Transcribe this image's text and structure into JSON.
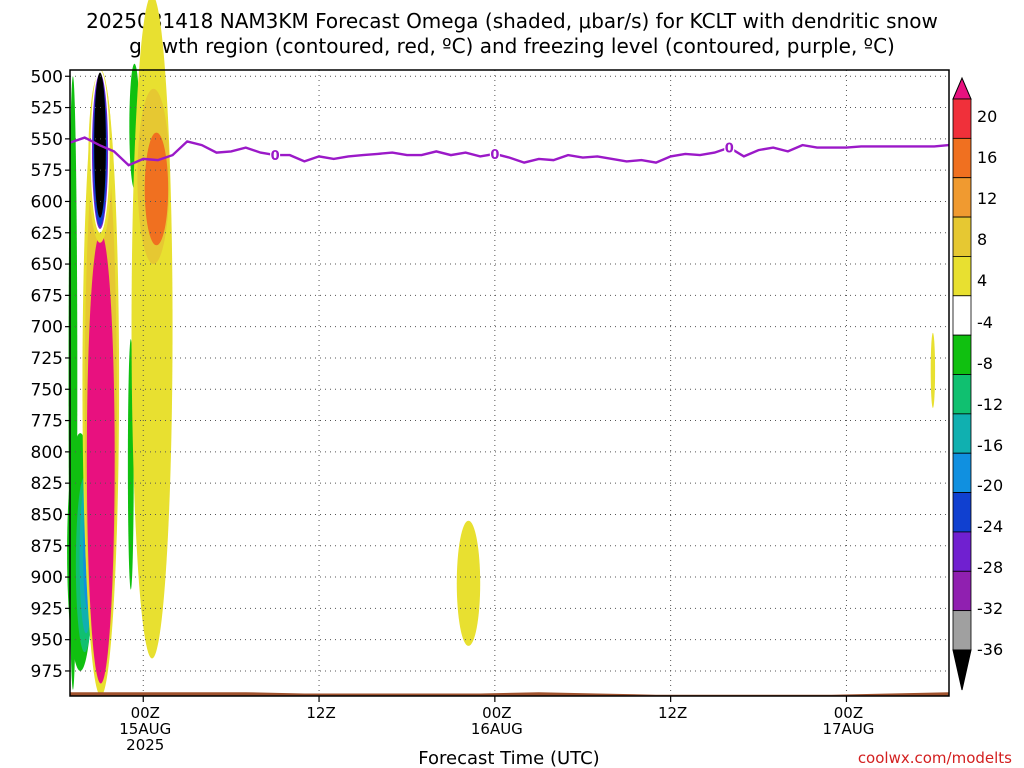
{
  "title_line1": "2025081418 NAM3KM Forecast Omega (shaded, μbar/s) for KCLT with dendritic snow",
  "title_line2": "growth region (contoured, red, ºC) and freezing level (contoured, purple, ºC)",
  "credit": "coolwx.com/modelts",
  "chart_data": {
    "type": "heatmap",
    "xlabel": "Forecast Time (UTC)",
    "x_range_hours": [
      -5,
      55
    ],
    "x_ticks": [
      {
        "hour": 0,
        "labels": [
          "00Z",
          "15AUG",
          "2025"
        ]
      },
      {
        "hour": 12,
        "labels": [
          "12Z"
        ]
      },
      {
        "hour": 24,
        "labels": [
          "00Z",
          "16AUG"
        ]
      },
      {
        "hour": 36,
        "labels": [
          "12Z"
        ]
      },
      {
        "hour": 48,
        "labels": [
          "00Z",
          "17AUG"
        ]
      }
    ],
    "y_ticks": [
      "500",
      "525",
      "550",
      "575",
      "600",
      "625",
      "650",
      "675",
      "700",
      "725",
      "750",
      "775",
      "800",
      "825",
      "850",
      "875",
      "900",
      "925",
      "950",
      "975"
    ],
    "y_range_hpa": [
      495,
      995
    ],
    "grid": "dotted",
    "colorbar": {
      "labels": [
        "20",
        "16",
        "12",
        "8",
        "4",
        "-4",
        "-8",
        "-12",
        "-16",
        "-20",
        "-24",
        "-28",
        "-32",
        "-36"
      ],
      "colors": [
        "#e8117f",
        "#f0303a",
        "#f07020",
        "#f09a30",
        "#e6c832",
        "#e8e030",
        "#ffffff",
        "#10c010",
        "#10c070",
        "#10b0b0",
        "#1090e0",
        "#1040d0",
        "#7020d0",
        "#9020b0",
        "#a0a0a0",
        "#000000"
      ]
    },
    "freezing_level": {
      "label": "0",
      "hours": [
        -5,
        -4,
        -3,
        -2,
        -1,
        0,
        1,
        2,
        3,
        4,
        5,
        6,
        7,
        8,
        9,
        10,
        11,
        12,
        13,
        14,
        15,
        16,
        17,
        18,
        19,
        20,
        21,
        22,
        23,
        24,
        25,
        26,
        27,
        28,
        29,
        30,
        31,
        32,
        33,
        34,
        35,
        36,
        37,
        38,
        39,
        40,
        41,
        42,
        43,
        44,
        45,
        46,
        47,
        48,
        49,
        50,
        51,
        52,
        53,
        54,
        55
      ],
      "pressure_hpa": [
        553,
        549,
        555,
        560,
        571,
        566,
        567,
        563,
        552,
        555,
        561,
        560,
        557,
        561,
        563,
        563,
        568,
        564,
        566,
        564,
        563,
        562,
        561,
        563,
        563,
        560,
        563,
        561,
        564,
        562,
        565,
        569,
        566,
        567,
        563,
        565,
        564,
        566,
        568,
        567,
        569,
        564,
        562,
        563,
        561,
        557,
        564,
        559,
        557,
        560,
        555,
        557,
        557,
        557,
        556,
        556,
        556,
        556,
        556,
        556,
        555
      ],
      "label_hours": [
        9,
        24,
        40
      ]
    },
    "omega_regions": [
      {
        "color": "#10c010",
        "cx_hour": -4.8,
        "cy_hpa": 745,
        "rx_hour": 0.3,
        "ry_hpa": 245
      },
      {
        "color": "#10c010",
        "cx_hour": -4.3,
        "cy_hpa": 880,
        "rx_hour": 0.9,
        "ry_hpa": 95
      },
      {
        "color": "#10c070",
        "cx_hour": -4.0,
        "cy_hpa": 890,
        "rx_hour": 0.6,
        "ry_hpa": 70
      },
      {
        "color": "#10b0b0",
        "cx_hour": -3.9,
        "cy_hpa": 885,
        "rx_hour": 0.45,
        "ry_hpa": 60
      },
      {
        "color": "#1090e0",
        "cx_hour": -3.8,
        "cy_hpa": 880,
        "rx_hour": 0.3,
        "ry_hpa": 45
      },
      {
        "color": "#1040d0",
        "cx_hour": -3.8,
        "cy_hpa": 875,
        "rx_hour": 0.15,
        "ry_hpa": 25
      },
      {
        "color": "#10c010",
        "cx_hour": -0.6,
        "cy_hpa": 540,
        "rx_hour": 0.35,
        "ry_hpa": 50
      },
      {
        "color": "#10c010",
        "cx_hour": -0.85,
        "cy_hpa": 810,
        "rx_hour": 0.2,
        "ry_hpa": 100
      },
      {
        "color": "#e8e030",
        "cx_hour": -2.9,
        "cy_hpa": 745,
        "rx_hour": 1.25,
        "ry_hpa": 250
      },
      {
        "color": "#e6c832",
        "cx_hour": -2.9,
        "cy_hpa": 760,
        "rx_hour": 1.1,
        "ry_hpa": 225
      },
      {
        "color": "#e8117f",
        "cx_hour": -2.9,
        "cy_hpa": 805,
        "rx_hour": 0.95,
        "ry_hpa": 180
      },
      {
        "color": "#e8e030",
        "cx_hour": -2.95,
        "cy_hpa": 565,
        "rx_hour": 0.8,
        "ry_hpa": 68
      },
      {
        "color": "#ffffff",
        "cx_hour": -2.95,
        "cy_hpa": 560,
        "rx_hour": 0.65,
        "ry_hpa": 65
      },
      {
        "color": "#7020d0",
        "cx_hour": -2.95,
        "cy_hpa": 560,
        "rx_hour": 0.55,
        "ry_hpa": 62
      },
      {
        "color": "#1040d0",
        "cx_hour": -2.95,
        "cy_hpa": 560,
        "rx_hour": 0.48,
        "ry_hpa": 60
      },
      {
        "color": "#000000",
        "cx_hour": -2.95,
        "cy_hpa": 555,
        "rx_hour": 0.4,
        "ry_hpa": 58
      },
      {
        "color": "#e8e030",
        "cx_hour": 0.6,
        "cy_hpa": 700,
        "rx_hour": 1.4,
        "ry_hpa": 265
      },
      {
        "color": "#e6c832",
        "cx_hour": 0.7,
        "cy_hpa": 580,
        "rx_hour": 1.1,
        "ry_hpa": 70
      },
      {
        "color": "#f07020",
        "cx_hour": 0.9,
        "cy_hpa": 590,
        "rx_hour": 0.8,
        "ry_hpa": 45
      },
      {
        "color": "#e8e030",
        "cx_hour": 22.2,
        "cy_hpa": 905,
        "rx_hour": 0.8,
        "ry_hpa": 50
      },
      {
        "color": "#e8e030",
        "cx_hour": 53.9,
        "cy_hpa": 735,
        "rx_hour": 0.15,
        "ry_hpa": 30
      }
    ],
    "surface_pressure_hpa": [
      992,
      992,
      992,
      992,
      993,
      993,
      993,
      993,
      992,
      993,
      994,
      994,
      994,
      994,
      993,
      992
    ]
  }
}
